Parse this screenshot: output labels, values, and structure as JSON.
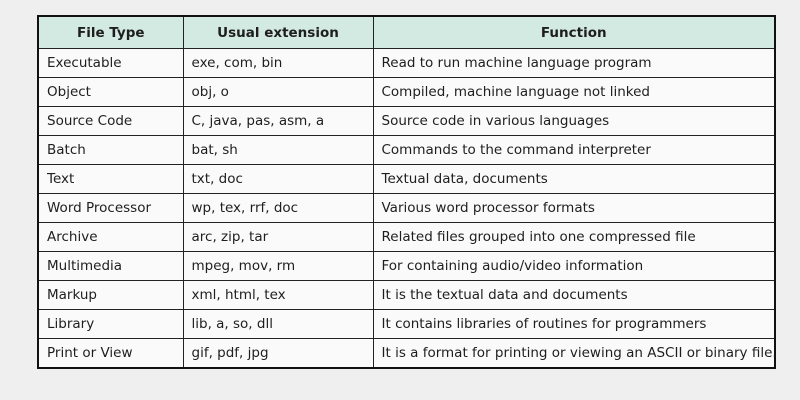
{
  "headers": [
    "File Type",
    "Usual extension",
    "Function"
  ],
  "rows": [
    [
      "Executable",
      "exe, com, bin",
      "Read to run machine language program"
    ],
    [
      "Object",
      "obj, o",
      "Compiled, machine language not linked"
    ],
    [
      "Source Code",
      "C, java, pas, asm, a",
      "Source code in various languages"
    ],
    [
      "Batch",
      "bat, sh",
      "Commands to the command interpreter"
    ],
    [
      "Text",
      "txt, doc",
      "Textual data, documents"
    ],
    [
      "Word Processor",
      "wp, tex, rrf, doc",
      "Various word processor formats"
    ],
    [
      "Archive",
      "arc, zip, tar",
      "Related files grouped into one compressed file"
    ],
    [
      "Multimedia",
      "mpeg, mov, rm",
      "For containing audio/video information"
    ],
    [
      "Markup",
      "xml, html, tex",
      "It is the textual data and documents"
    ],
    [
      "Library",
      "lib, a, so, dll",
      "It contains libraries of routines for programmers"
    ],
    [
      "Print or View",
      "gif, pdf, jpg",
      "It is a format for printing or viewing an ASCII or binary file."
    ]
  ],
  "colors": {
    "header_bg": "#d3eae2",
    "border": "#222222"
  }
}
